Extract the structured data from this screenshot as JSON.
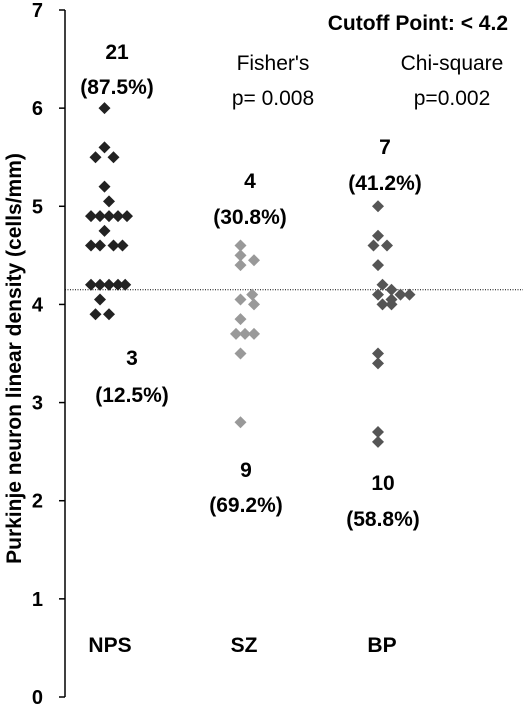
{
  "chart_data": {
    "type": "scatter",
    "ylabel": "Purkinje neuron linear density (cells/mm)",
    "ylim": [
      0,
      7
    ],
    "yticks": [
      "0",
      "1",
      "2",
      "3",
      "4",
      "5",
      "6",
      "7"
    ],
    "categories": [
      "NPS",
      "SZ",
      "BP"
    ],
    "cutoff_label": "Cutoff Point: < 4.2",
    "cutoff_value": 4.15,
    "tests": [
      {
        "name": "Fisher's",
        "p": "p= 0.008"
      },
      {
        "name": "Chi-square",
        "p": "p=0.002"
      }
    ],
    "series": [
      {
        "category": "NPS",
        "color": "#222222",
        "above_count": "21",
        "above_pct": "(87.5%)",
        "below_count": "3",
        "below_pct": "(12.5%)",
        "points": [
          {
            "dx": -0.15,
            "y": 6.0
          },
          {
            "dx": -0.15,
            "y": 5.6
          },
          {
            "dx": -0.05,
            "y": 5.5
          },
          {
            "dx": -0.25,
            "y": 5.5
          },
          {
            "dx": -0.15,
            "y": 5.2
          },
          {
            "dx": -0.1,
            "y": 5.05
          },
          {
            "dx": -0.3,
            "y": 4.9
          },
          {
            "dx": -0.2,
            "y": 4.9
          },
          {
            "dx": -0.1,
            "y": 4.9
          },
          {
            "dx": 0.0,
            "y": 4.9
          },
          {
            "dx": 0.1,
            "y": 4.9
          },
          {
            "dx": -0.15,
            "y": 4.75
          },
          {
            "dx": -0.3,
            "y": 4.6
          },
          {
            "dx": -0.2,
            "y": 4.6
          },
          {
            "dx": -0.05,
            "y": 4.6
          },
          {
            "dx": 0.05,
            "y": 4.6
          },
          {
            "dx": -0.3,
            "y": 4.2
          },
          {
            "dx": -0.2,
            "y": 4.2
          },
          {
            "dx": -0.1,
            "y": 4.2
          },
          {
            "dx": 0.0,
            "y": 4.2
          },
          {
            "dx": 0.08,
            "y": 4.2
          },
          {
            "dx": -0.2,
            "y": 4.05
          },
          {
            "dx": -0.25,
            "y": 3.9
          },
          {
            "dx": -0.1,
            "y": 3.9
          }
        ]
      },
      {
        "category": "SZ",
        "color": "#999999",
        "above_count": "4",
        "above_pct": "(30.8%)",
        "below_count": "9",
        "below_pct": "(69.2%)",
        "points": [
          {
            "dx": -0.05,
            "y": 4.6
          },
          {
            "dx": -0.05,
            "y": 4.5
          },
          {
            "dx": 0.1,
            "y": 4.45
          },
          {
            "dx": -0.05,
            "y": 4.4
          },
          {
            "dx": 0.08,
            "y": 4.1
          },
          {
            "dx": -0.05,
            "y": 4.05
          },
          {
            "dx": 0.1,
            "y": 4.0
          },
          {
            "dx": -0.1,
            "y": 3.7
          },
          {
            "dx": 0.0,
            "y": 3.7
          },
          {
            "dx": 0.1,
            "y": 3.7
          },
          {
            "dx": -0.05,
            "y": 3.85
          },
          {
            "dx": -0.05,
            "y": 3.5
          },
          {
            "dx": -0.05,
            "y": 2.8
          }
        ]
      },
      {
        "category": "BP",
        "color": "#555555",
        "above_count": "7",
        "above_pct": "(41.2%)",
        "below_count": "10",
        "below_pct": "(58.8%)",
        "points": [
          {
            "dx": 0.0,
            "y": 5.0
          },
          {
            "dx": 0.0,
            "y": 4.7
          },
          {
            "dx": 0.1,
            "y": 4.6
          },
          {
            "dx": -0.05,
            "y": 4.6
          },
          {
            "dx": 0.0,
            "y": 4.4
          },
          {
            "dx": 0.05,
            "y": 4.2
          },
          {
            "dx": 0.15,
            "y": 4.15
          },
          {
            "dx": 0.25,
            "y": 4.1
          },
          {
            "dx": 0.35,
            "y": 4.1
          },
          {
            "dx": 0.0,
            "y": 4.1
          },
          {
            "dx": 0.05,
            "y": 4.0
          },
          {
            "dx": 0.15,
            "y": 4.0
          },
          {
            "dx": 0.0,
            "y": 3.5
          },
          {
            "dx": 0.0,
            "y": 3.4
          },
          {
            "dx": 0.0,
            "y": 2.7
          },
          {
            "dx": 0.0,
            "y": 2.6
          },
          {
            "dx": 0.15,
            "y": 4.05
          }
        ]
      }
    ]
  }
}
